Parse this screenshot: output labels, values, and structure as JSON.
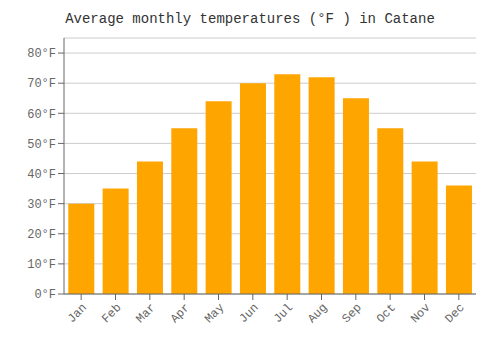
{
  "chart_data": {
    "type": "bar",
    "title": "Average monthly temperatures (°F ) in Catane",
    "categories": [
      "Jan",
      "Feb",
      "Mar",
      "Apr",
      "May",
      "Jun",
      "Jul",
      "Aug",
      "Sep",
      "Oct",
      "Nov",
      "Dec"
    ],
    "values": [
      30,
      35,
      44,
      55,
      64,
      70,
      73,
      72,
      65,
      55,
      44,
      36
    ],
    "color": "#FFA500",
    "ylim": [
      0,
      85
    ],
    "yticks": [
      {
        "value": 0,
        "label": "0°F"
      },
      {
        "value": 10,
        "label": "10°F"
      },
      {
        "value": 20,
        "label": "20°F"
      },
      {
        "value": 30,
        "label": "30°F"
      },
      {
        "value": 40,
        "label": "40°F"
      },
      {
        "value": 50,
        "label": "50°F"
      },
      {
        "value": 60,
        "label": "60°F"
      },
      {
        "value": 70,
        "label": "70°F"
      },
      {
        "value": 80,
        "label": "80°F"
      }
    ],
    "grid": true
  }
}
